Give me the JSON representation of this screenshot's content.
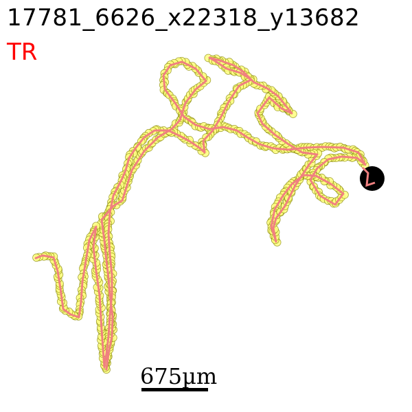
{
  "title": "17781_6626_x22318_y13682",
  "tag": "TR",
  "scale_bar": {
    "label": "675µm"
  },
  "colors": {
    "tag": "#ff0000",
    "path_line": "#f08080",
    "marker_fill": "#ffff80",
    "marker_stroke": "#808000",
    "end_marker": "#000000"
  },
  "icons": {
    "end_marker": "black-circle-icon"
  }
}
